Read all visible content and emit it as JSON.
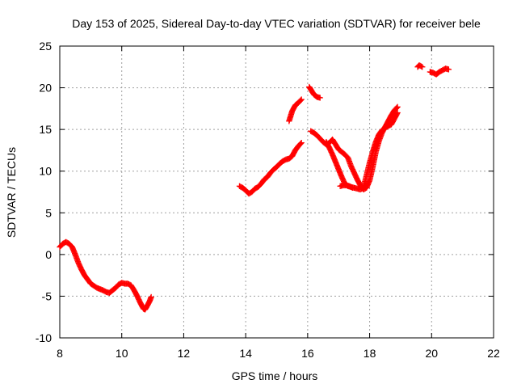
{
  "chart_data": {
    "type": "scatter",
    "title": "Day 153 of 2025, Sidereal Day-to-day VTEC variation (SDTVAR) for receiver bele",
    "xlabel": "GPS time / hours",
    "ylabel": "SDTVAR / TECUs",
    "xlim": [
      8,
      22
    ],
    "ylim": [
      -10,
      25
    ],
    "xticks": [
      "8",
      "10",
      "12",
      "14",
      "16",
      "18",
      "20",
      "22"
    ],
    "yticks": [
      "25",
      "20",
      "15",
      "10",
      "5",
      "0",
      "-5",
      "-10"
    ],
    "grid": true,
    "marker": "plus",
    "color": "#ff0000",
    "series": [
      {
        "name": "SDTVAR",
        "segments": [
          [
            [
              8.0,
              0.9
            ],
            [
              8.1,
              1.3
            ],
            [
              8.2,
              1.5
            ],
            [
              8.3,
              1.3
            ],
            [
              8.4,
              0.9
            ],
            [
              8.5,
              0.0
            ],
            [
              8.6,
              -1.0
            ],
            [
              8.7,
              -1.8
            ],
            [
              8.8,
              -2.5
            ],
            [
              8.9,
              -3.0
            ],
            [
              9.0,
              -3.5
            ],
            [
              9.2,
              -4.0
            ],
            [
              9.4,
              -4.3
            ],
            [
              9.5,
              -4.5
            ],
            [
              9.6,
              -4.6
            ],
            [
              9.7,
              -4.3
            ],
            [
              9.8,
              -4.0
            ],
            [
              9.9,
              -3.6
            ],
            [
              10.0,
              -3.4
            ],
            [
              10.1,
              -3.5
            ],
            [
              10.2,
              -3.5
            ],
            [
              10.3,
              -3.7
            ],
            [
              10.4,
              -4.3
            ],
            [
              10.5,
              -5.0
            ],
            [
              10.6,
              -5.8
            ],
            [
              10.7,
              -6.5
            ],
            [
              10.75,
              -6.6
            ],
            [
              10.8,
              -6.3
            ],
            [
              10.9,
              -5.6
            ],
            [
              10.95,
              -5.1
            ]
          ],
          [
            [
              13.8,
              8.2
            ],
            [
              13.9,
              8.0
            ],
            [
              14.0,
              7.7
            ],
            [
              14.1,
              7.3
            ],
            [
              14.2,
              7.5
            ],
            [
              14.3,
              7.9
            ],
            [
              14.4,
              8.1
            ],
            [
              14.5,
              8.5
            ],
            [
              14.6,
              9.0
            ],
            [
              14.7,
              9.3
            ],
            [
              14.8,
              9.8
            ],
            [
              14.9,
              10.2
            ],
            [
              15.0,
              10.5
            ],
            [
              15.1,
              10.9
            ],
            [
              15.2,
              11.2
            ],
            [
              15.3,
              11.4
            ],
            [
              15.4,
              11.5
            ],
            [
              15.5,
              11.8
            ],
            [
              15.6,
              12.5
            ],
            [
              15.7,
              13.0
            ],
            [
              15.8,
              13.4
            ]
          ],
          [
            [
              15.4,
              16.0
            ],
            [
              15.5,
              17.2
            ],
            [
              15.6,
              17.9
            ],
            [
              15.7,
              18.2
            ],
            [
              15.8,
              18.6
            ]
          ],
          [
            [
              16.05,
              20.1
            ],
            [
              16.1,
              19.8
            ],
            [
              16.2,
              19.2
            ],
            [
              16.3,
              18.9
            ],
            [
              16.4,
              18.8
            ]
          ],
          [
            [
              16.1,
              14.8
            ],
            [
              16.2,
              14.6
            ],
            [
              16.3,
              14.3
            ],
            [
              16.4,
              13.9
            ],
            [
              16.5,
              13.5
            ],
            [
              16.6,
              13.2
            ],
            [
              16.7,
              13.4
            ],
            [
              16.8,
              13.8
            ],
            [
              16.9,
              13.2
            ],
            [
              17.0,
              12.6
            ],
            [
              17.1,
              12.3
            ],
            [
              17.2,
              12.0
            ],
            [
              17.3,
              11.6
            ],
            [
              17.4,
              10.6
            ],
            [
              17.5,
              9.8
            ],
            [
              17.6,
              9.0
            ],
            [
              17.7,
              8.3
            ],
            [
              17.8,
              7.8
            ],
            [
              17.9,
              8.0
            ],
            [
              18.0,
              8.9
            ],
            [
              18.1,
              10.5
            ],
            [
              18.2,
              12.3
            ],
            [
              18.3,
              13.6
            ],
            [
              18.4,
              14.6
            ],
            [
              18.5,
              15.3
            ],
            [
              18.6,
              16.0
            ],
            [
              18.7,
              16.7
            ],
            [
              18.8,
              17.3
            ],
            [
              18.9,
              17.7
            ]
          ],
          [
            [
              16.6,
              13.5
            ],
            [
              16.7,
              12.8
            ],
            [
              16.8,
              12.0
            ],
            [
              16.9,
              11.1
            ],
            [
              17.0,
              10.2
            ],
            [
              17.1,
              9.3
            ],
            [
              17.2,
              8.5
            ],
            [
              17.3,
              8.2
            ],
            [
              17.4,
              8.1
            ],
            [
              17.5,
              8.0
            ],
            [
              17.6,
              7.9
            ],
            [
              17.7,
              7.8
            ],
            [
              17.8,
              8.0
            ],
            [
              17.9,
              9.5
            ],
            [
              18.0,
              11.0
            ],
            [
              18.1,
              12.3
            ],
            [
              18.2,
              13.5
            ],
            [
              18.3,
              14.4
            ],
            [
              18.4,
              14.9
            ],
            [
              18.5,
              15.2
            ],
            [
              18.6,
              15.4
            ],
            [
              18.7,
              15.6
            ],
            [
              18.8,
              16.3
            ],
            [
              18.9,
              17.0
            ]
          ],
          [
            [
              17.05,
              8.2
            ],
            [
              17.15,
              8.3
            ],
            [
              17.25,
              8.3
            ],
            [
              17.35,
              8.2
            ],
            [
              17.45,
              8.0
            ]
          ],
          [
            [
              19.55,
              22.5
            ],
            [
              19.6,
              22.7
            ],
            [
              19.7,
              22.5
            ]
          ],
          [
            [
              19.95,
              21.9
            ],
            [
              20.05,
              21.8
            ],
            [
              20.15,
              21.6
            ],
            [
              20.25,
              21.9
            ],
            [
              20.35,
              22.1
            ],
            [
              20.45,
              22.3
            ],
            [
              20.55,
              22.2
            ]
          ]
        ]
      }
    ]
  }
}
